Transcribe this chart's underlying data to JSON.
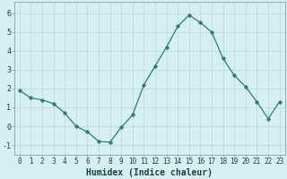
{
  "x": [
    0,
    1,
    2,
    3,
    4,
    5,
    6,
    7,
    8,
    9,
    10,
    11,
    12,
    13,
    14,
    15,
    16,
    17,
    18,
    19,
    20,
    21,
    22,
    23
  ],
  "y": [
    1.9,
    1.5,
    1.4,
    1.2,
    0.7,
    0.0,
    -0.3,
    -0.8,
    -0.85,
    -0.05,
    0.6,
    2.2,
    3.2,
    4.2,
    5.3,
    5.9,
    5.5,
    5.0,
    3.6,
    2.7,
    2.1,
    1.3,
    0.4,
    1.3
  ],
  "line_color": "#2e7d6e",
  "marker": "D",
  "markersize": 1.8,
  "linewidth": 0.9,
  "xlabel": "Humidex (Indice chaleur)",
  "xlabel_fontsize": 7,
  "xlabel_fontweight": "bold",
  "background_color": "#d6f0f0",
  "grid_color": "#b8d8d8",
  "yticks": [
    -1,
    0,
    1,
    2,
    3,
    4,
    5,
    6
  ],
  "xticks": [
    0,
    1,
    2,
    3,
    4,
    5,
    6,
    7,
    8,
    9,
    10,
    11,
    12,
    13,
    14,
    15,
    16,
    17,
    18,
    19,
    20,
    21,
    22,
    23
  ],
  "ylim": [
    -1.5,
    6.6
  ],
  "xlim": [
    -0.5,
    23.5
  ],
  "tick_fontsize": 5.5,
  "ytick_fontsize": 6
}
